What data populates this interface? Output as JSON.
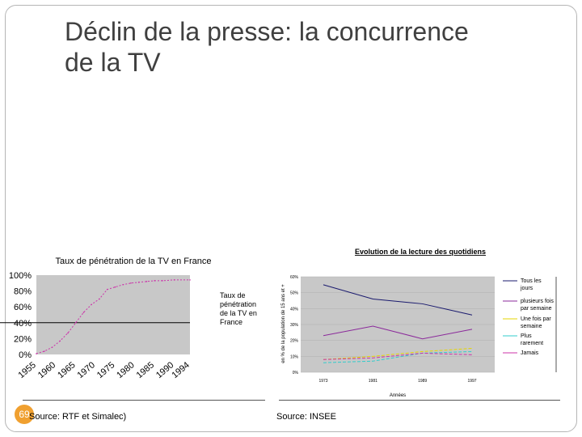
{
  "slide": {
    "title_line1": "Déclin de la presse: la concurrence",
    "title_line2": "de la TV",
    "page_number": "69",
    "source_left": "Source: RTF et Simalec)",
    "source_right": "Source: INSEE",
    "accent_color": "#f0a030"
  },
  "chart_data": [
    {
      "type": "line",
      "title": "Taux de pénétration de la TV en France",
      "xlabel": "",
      "ylabel": "",
      "x": [
        1955,
        1957,
        1959,
        1961,
        1963,
        1965,
        1967,
        1969,
        1971,
        1973,
        1975,
        1977,
        1979,
        1981,
        1983,
        1985,
        1987,
        1990,
        1994
      ],
      "xticks": [
        "1955",
        "1960",
        "1965",
        "1970",
        "1975",
        "1980",
        "1985",
        "1990",
        "1994"
      ],
      "yticks": [
        "0%",
        "20%",
        "40%",
        "60%",
        "80%",
        "100%"
      ],
      "ylim": [
        0,
        100
      ],
      "series": [
        {
          "name": "Taux de pénétration de la TV en France",
          "values": [
            1,
            4,
            9,
            17,
            27,
            40,
            53,
            63,
            70,
            82,
            85,
            88,
            90,
            91,
            92,
            93,
            93,
            94,
            94
          ],
          "color": "#cc33aa"
        }
      ],
      "grid": false,
      "legend": "right",
      "reference_line": 40
    },
    {
      "type": "line",
      "title": "Evolution de la lecture des quotidiens",
      "xlabel": "Années",
      "ylabel": "en % de la population de 15 ans et +",
      "categories": [
        "1973",
        "1981",
        "1989",
        "1997"
      ],
      "yticks": [
        "0%",
        "10%",
        "20%",
        "30%",
        "40%",
        "50%",
        "60%"
      ],
      "ylim": [
        0,
        60
      ],
      "series": [
        {
          "name": "Tous les jours",
          "values": [
            55,
            46,
            43,
            36
          ],
          "color": "#1a1a6e"
        },
        {
          "name": "plusieurs fois par semaine",
          "values": [
            23,
            29,
            21,
            27
          ],
          "color": "#8b2a9b"
        },
        {
          "name": "Une fois par semaine",
          "values": [
            8,
            10,
            13,
            15
          ],
          "color": "#e6d600"
        },
        {
          "name": "Plus rarement",
          "values": [
            6,
            7,
            12,
            13
          ],
          "color": "#33cccc"
        },
        {
          "name": "Jamais",
          "values": [
            8,
            9,
            12,
            11
          ],
          "color": "#cc33aa"
        }
      ],
      "grid": true,
      "legend": "right"
    }
  ]
}
